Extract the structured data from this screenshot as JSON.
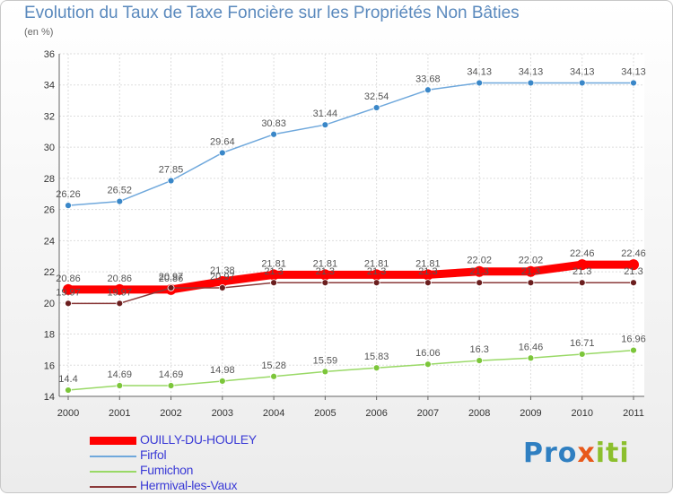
{
  "title": "Evolution du Taux de Taxe Foncière sur les Propriétés Non Bâties",
  "subtitle": "(en %)",
  "logo_text": "Proxiti",
  "chart_data": {
    "type": "line",
    "title": "Evolution du Taux de Taxe Foncière sur les Propriétés Non Bâties",
    "ylabel": "(en %)",
    "xlabel": "",
    "x": [
      "2000",
      "2001",
      "2002",
      "2003",
      "2004",
      "2005",
      "2006",
      "2007",
      "2008",
      "2009",
      "2010",
      "2011"
    ],
    "ylim": [
      14,
      36
    ],
    "yticks": [
      14,
      16,
      18,
      20,
      22,
      24,
      26,
      28,
      30,
      32,
      34,
      36
    ],
    "grid": true,
    "legend_position": "bottom-left",
    "series": [
      {
        "name": "OUILLY-DU-HOULEY",
        "color": "#ff0000",
        "values": [
          20.86,
          20.86,
          20.86,
          21.38,
          21.81,
          21.81,
          21.81,
          21.81,
          22.02,
          22.02,
          22.46,
          22.46
        ],
        "labels": [
          "20.86",
          "20.86",
          "20.86",
          "21.38",
          "21.81",
          "21.81",
          "21.81",
          "21.81",
          "22.02",
          "22.02",
          "22.46",
          "22.46"
        ]
      },
      {
        "name": "Firfol",
        "color": "#6fa8dc",
        "values": [
          26.26,
          26.52,
          27.85,
          29.64,
          30.83,
          31.44,
          32.54,
          33.68,
          34.13,
          34.13,
          34.13,
          34.13
        ],
        "labels": [
          "26.26",
          "26.52",
          "27.85",
          "29.64",
          "30.83",
          "31.44",
          "32.54",
          "33.68",
          "34.13",
          "34.13",
          "34.13",
          "34.13"
        ]
      },
      {
        "name": "Fumichon",
        "color": "#99d966",
        "values": [
          14.4,
          14.69,
          14.69,
          14.98,
          15.28,
          15.59,
          15.83,
          16.06,
          16.3,
          16.46,
          16.71,
          16.96
        ],
        "labels": [
          "14.4",
          "14.69",
          "14.69",
          "14.98",
          "15.28",
          "15.59",
          "15.83",
          "16.06",
          "16.3",
          "16.46",
          "16.71",
          "16.96"
        ]
      },
      {
        "name": "Hermival-les-Vaux",
        "color": "#8b3a3a",
        "values": [
          19.97,
          19.97,
          20.97,
          20.97,
          21.3,
          21.3,
          21.3,
          21.3,
          21.3,
          21.3,
          21.3,
          21.3
        ],
        "labels": [
          "19.97",
          "19.97",
          "20.97",
          "20.97",
          "21.3",
          "21.3",
          "21.3",
          "21.3",
          "21.3",
          "21.3",
          "21.3",
          "21.3"
        ]
      }
    ]
  }
}
